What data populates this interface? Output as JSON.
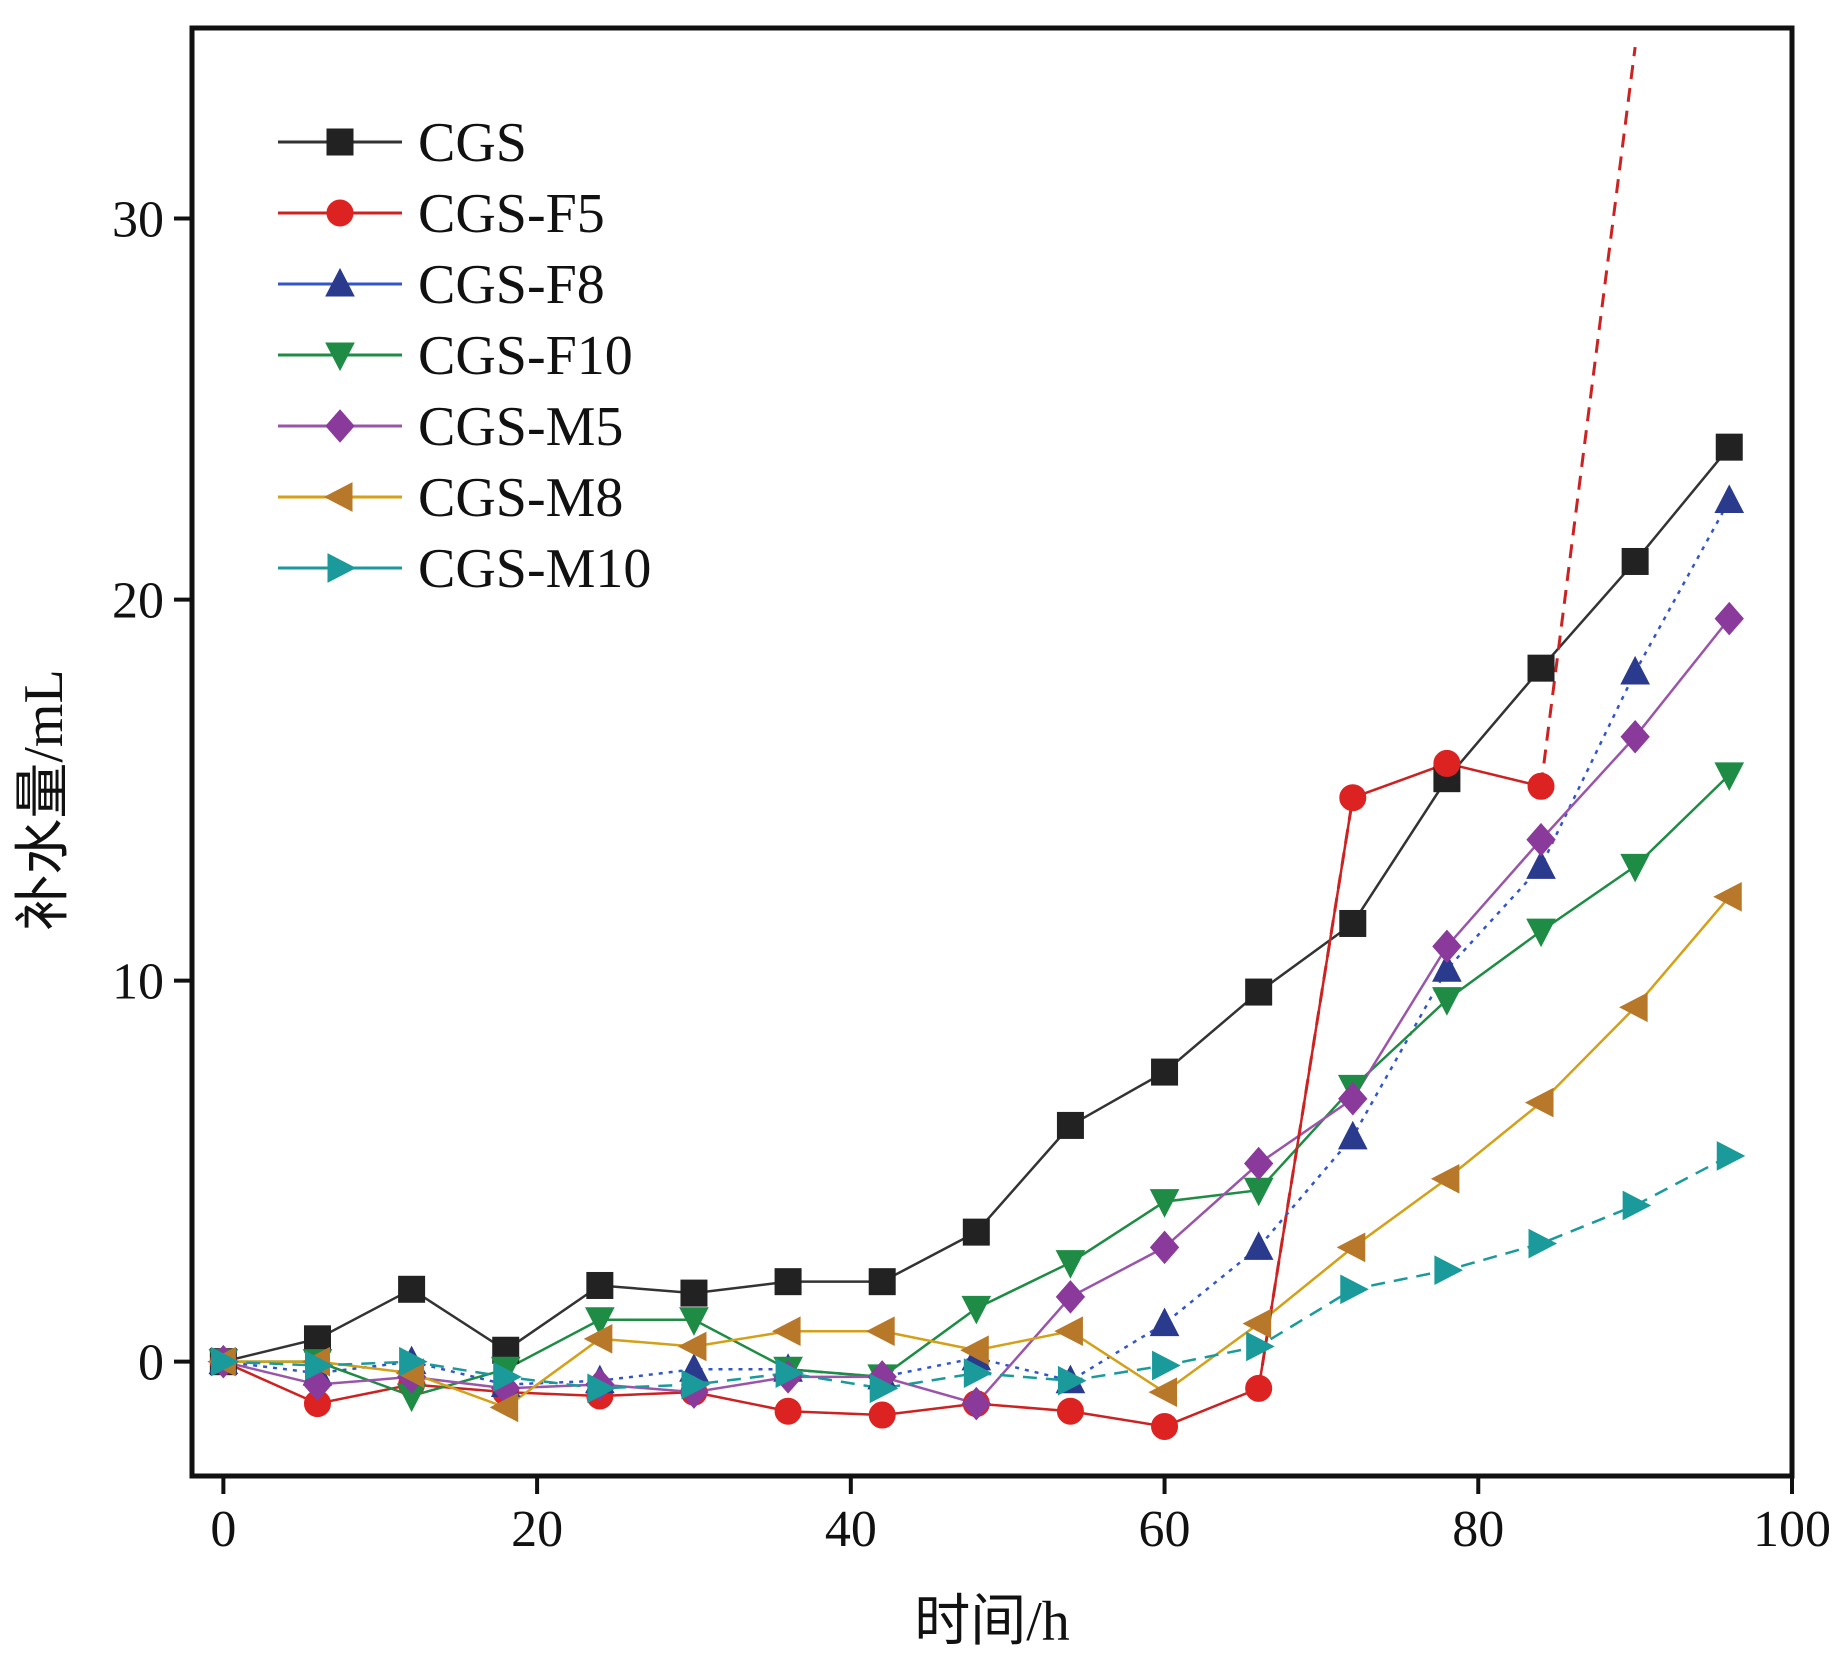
{
  "chart_data": {
    "type": "line",
    "title": "",
    "xlabel": "时间/h",
    "ylabel": "补水量/mL",
    "xlim": [
      -2,
      100
    ],
    "ylim": [
      -3,
      35
    ],
    "xticks": [
      0,
      20,
      40,
      60,
      80,
      100
    ],
    "yticks": [
      0,
      10,
      20,
      30
    ],
    "grid": false,
    "legend_position": "top-left",
    "series": [
      {
        "name": "CGS",
        "color": "#222222",
        "line_color": "#333333",
        "marker": "square",
        "dash": "solid",
        "x": [
          0,
          6,
          12,
          18,
          24,
          30,
          36,
          42,
          48,
          54,
          60,
          66,
          72,
          78,
          84,
          90,
          96
        ],
        "y": [
          0,
          0.6,
          1.9,
          0.3,
          2.0,
          1.8,
          2.1,
          2.1,
          3.4,
          6.2,
          7.6,
          9.7,
          11.5,
          15.3,
          18.2,
          21.0,
          24.0
        ]
      },
      {
        "name": "CGS-F5",
        "color": "#dd2222",
        "line_color": "#cc2222",
        "marker": "circle",
        "dash": "solid",
        "x": [
          0,
          6,
          12,
          18,
          24,
          30,
          36,
          42,
          48,
          54,
          60,
          66,
          72,
          78,
          84
        ],
        "y": [
          0,
          -1.1,
          -0.6,
          -0.8,
          -0.9,
          -0.8,
          -1.3,
          -1.4,
          -1.1,
          -1.3,
          -1.7,
          -0.7,
          14.8,
          15.7,
          15.1
        ]
      },
      {
        "name": "CGS-F8",
        "color": "#2a3a8c",
        "line_color": "#3355cc",
        "marker": "triangle-up",
        "dash": "dotted",
        "x": [
          0,
          6,
          12,
          18,
          24,
          30,
          36,
          42,
          48,
          54,
          60,
          66,
          72,
          78,
          84,
          90,
          96
        ],
        "y": [
          0,
          -0.3,
          0,
          -0.6,
          -0.5,
          -0.2,
          -0.2,
          -0.4,
          0.1,
          -0.5,
          1.0,
          3.0,
          5.9,
          10.3,
          13.0,
          18.1,
          22.6
        ]
      },
      {
        "name": "CGS-F10",
        "color": "#1e8c44",
        "line_color": "#1e8c44",
        "marker": "triangle-down",
        "dash": "solid",
        "x": [
          0,
          6,
          12,
          18,
          24,
          30,
          36,
          42,
          48,
          54,
          60,
          66,
          72,
          78,
          84,
          90,
          96
        ],
        "y": [
          0,
          0,
          -0.9,
          -0.2,
          1.1,
          1.1,
          -0.2,
          -0.4,
          1.4,
          2.6,
          4.2,
          4.5,
          7.2,
          9.5,
          11.3,
          13.0,
          15.4
        ]
      },
      {
        "name": "CGS-M5",
        "color": "#8a3a9a",
        "line_color": "#9a55aa",
        "marker": "diamond",
        "dash": "solid",
        "x": [
          0,
          6,
          12,
          18,
          24,
          30,
          36,
          42,
          48,
          54,
          60,
          66,
          72,
          78,
          84,
          90,
          96
        ],
        "y": [
          0,
          -0.6,
          -0.4,
          -0.7,
          -0.6,
          -0.8,
          -0.4,
          -0.4,
          -1.1,
          1.7,
          3.0,
          5.2,
          6.9,
          10.9,
          13.7,
          16.4,
          19.5
        ]
      },
      {
        "name": "CGS-M8",
        "color": "#b8782a",
        "line_color": "#d4a017",
        "marker": "triangle-left",
        "dash": "solid",
        "x": [
          0,
          6,
          12,
          18,
          24,
          30,
          36,
          42,
          48,
          54,
          60,
          66,
          72,
          78,
          84,
          90,
          96
        ],
        "y": [
          0,
          0,
          -0.3,
          -1.2,
          0.6,
          0.4,
          0.8,
          0.8,
          0.3,
          0.8,
          -0.8,
          1.0,
          3.0,
          4.8,
          6.8,
          9.3,
          12.2
        ]
      },
      {
        "name": "CGS-M10",
        "color": "#1a9a9a",
        "line_color": "#1a9a9a",
        "marker": "triangle-right",
        "dash": "dashed",
        "x": [
          0,
          6,
          12,
          18,
          24,
          30,
          36,
          42,
          48,
          54,
          60,
          66,
          72,
          78,
          84,
          90,
          96
        ],
        "y": [
          0,
          -0.1,
          0,
          -0.4,
          -0.7,
          -0.6,
          -0.3,
          -0.7,
          -0.3,
          -0.5,
          -0.1,
          0.4,
          1.9,
          2.4,
          3.1,
          4.1,
          5.4
        ]
      }
    ],
    "connectors": [
      {
        "series": "CGS-F5",
        "from": [
          66,
          -0.7
        ],
        "to": [
          72,
          14.8
        ],
        "dash": "dashed",
        "color": "#cc2222"
      },
      {
        "series": "CGS-F5",
        "from": [
          84,
          15.1
        ],
        "to": [
          90,
          34.5
        ],
        "dash": "dashed",
        "color": "#cc2222"
      }
    ]
  }
}
